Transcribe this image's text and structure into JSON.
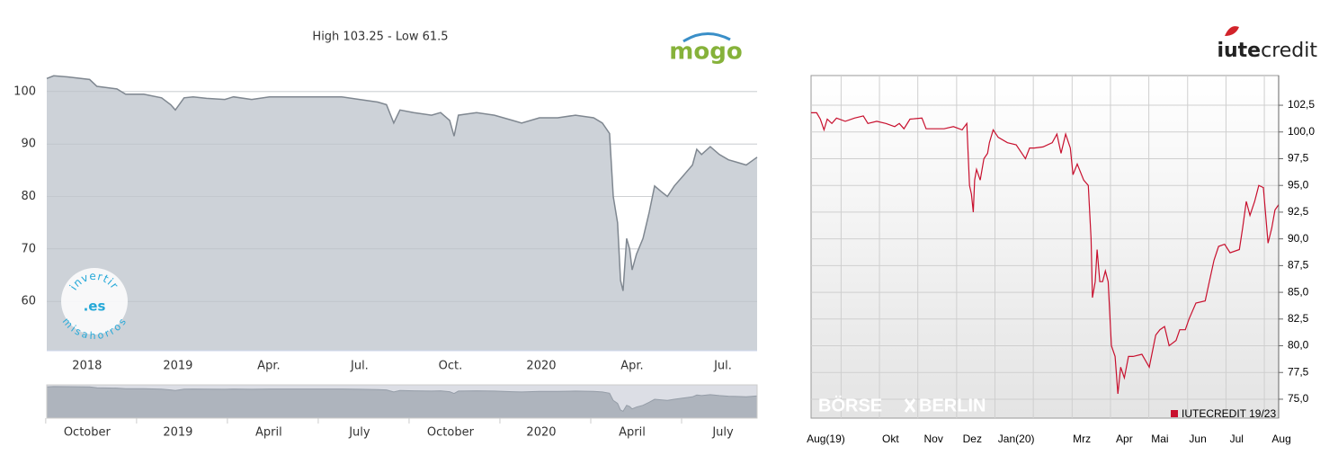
{
  "chart_data": [
    {
      "type": "area",
      "title": "High 103.25 - Low 61.5",
      "logo": "mogo",
      "watermark": [
        "invertir",
        ".es",
        "misahorros"
      ],
      "color": "#7f8790",
      "fill": "#cdd2d8",
      "grid": true,
      "xlim": [
        2018.639,
        2020.594
      ],
      "ylim": [
        50.6,
        105.8
      ],
      "yticks": [
        60,
        70,
        80,
        90,
        100
      ],
      "xticks": [
        {
          "value": 2018.75,
          "label": "2018"
        },
        {
          "value": 2019.0,
          "label": "2019"
        },
        {
          "value": 2019.25,
          "label": "Apr."
        },
        {
          "value": 2019.5,
          "label": "Jul."
        },
        {
          "value": 2019.75,
          "label": "Oct."
        },
        {
          "value": 2020.0,
          "label": "2020"
        },
        {
          "value": 2020.25,
          "label": "Apr."
        },
        {
          "value": 2020.5,
          "label": "Jul."
        }
      ],
      "navigator_xticks": [
        {
          "value": 2018.75,
          "label": "October"
        },
        {
          "value": 2019.0,
          "label": "2019"
        },
        {
          "value": 2019.25,
          "label": "April"
        },
        {
          "value": 2019.5,
          "label": "July"
        },
        {
          "value": 2019.75,
          "label": "October"
        },
        {
          "value": 2020.0,
          "label": "2020"
        },
        {
          "value": 2020.25,
          "label": "April"
        },
        {
          "value": 2020.5,
          "label": "July"
        }
      ],
      "x": [
        2018.639,
        2018.658,
        2018.696,
        2018.757,
        2018.777,
        2018.832,
        2018.856,
        2018.906,
        2018.955,
        2018.98,
        2018.993,
        2019.017,
        2019.042,
        2019.079,
        2019.129,
        2019.153,
        2019.203,
        2019.252,
        2019.302,
        2019.351,
        2019.401,
        2019.45,
        2019.5,
        2019.55,
        2019.574,
        2019.594,
        2019.611,
        2019.649,
        2019.698,
        2019.723,
        2019.748,
        2019.76,
        2019.772,
        2019.822,
        2019.871,
        2019.921,
        2019.946,
        2019.995,
        2020.045,
        2020.094,
        2020.144,
        2020.168,
        2020.188,
        2020.198,
        2020.21,
        2020.218,
        2020.225,
        2020.235,
        2020.243,
        2020.25,
        2020.262,
        2020.28,
        2020.297,
        2020.312,
        2020.329,
        2020.347,
        2020.366,
        2020.391,
        2020.416,
        2020.428,
        2020.441,
        2020.465,
        2020.49,
        2020.515,
        2020.54,
        2020.564,
        2020.584,
        2020.594
      ],
      "values": [
        102.5,
        103,
        102.8,
        102.3,
        101,
        100.5,
        99.5,
        99.5,
        98.8,
        97.5,
        96.5,
        98.8,
        99,
        98.7,
        98.5,
        99,
        98.5,
        99,
        99,
        99,
        99,
        99,
        98.5,
        98,
        97.5,
        94,
        96.5,
        96,
        95.5,
        96,
        94.5,
        91.5,
        95.5,
        96,
        95.5,
        94.5,
        94,
        95,
        95,
        95.5,
        95,
        94,
        92,
        80,
        75,
        64,
        62,
        72,
        70,
        66,
        69,
        72,
        77,
        82,
        81,
        80,
        82,
        84,
        86,
        89,
        88,
        89.5,
        88,
        87,
        86.5,
        86,
        87,
        87.5
      ]
    },
    {
      "type": "line",
      "logo": [
        "iute",
        "credit"
      ],
      "watermark": [
        "BÖRSE",
        "BERLIN"
      ],
      "grid": true,
      "xlim": [
        2019.602,
        2020.614
      ],
      "ylim": [
        73.23,
        105.28
      ],
      "yticks": [
        {
          "value": 75,
          "label": "75,0"
        },
        {
          "value": 77.5,
          "label": "77,5"
        },
        {
          "value": 80,
          "label": "80,0"
        },
        {
          "value": 82.5,
          "label": "82,5"
        },
        {
          "value": 85,
          "label": "85,0"
        },
        {
          "value": 87.5,
          "label": "87,5"
        },
        {
          "value": 90,
          "label": "90,0"
        },
        {
          "value": 92.5,
          "label": "92,5"
        },
        {
          "value": 95,
          "label": "95,0"
        },
        {
          "value": 97.5,
          "label": "97,5"
        },
        {
          "value": 100,
          "label": "100,0"
        },
        {
          "value": 102.5,
          "label": "102,5"
        }
      ],
      "xticks": [
        {
          "value": 2019.634,
          "label": "Aug(19)"
        },
        {
          "value": 2019.774,
          "label": "Okt"
        },
        {
          "value": 2019.867,
          "label": "Nov"
        },
        {
          "value": 2019.951,
          "label": "Dez"
        },
        {
          "value": 2020.046,
          "label": "Jan(20)"
        },
        {
          "value": 2020.188,
          "label": "Mrz"
        },
        {
          "value": 2020.28,
          "label": "Apr"
        },
        {
          "value": 2020.357,
          "label": "Mai"
        },
        {
          "value": 2020.439,
          "label": "Jun"
        },
        {
          "value": 2020.523,
          "label": "Jul"
        },
        {
          "value": 2020.62,
          "label": "Aug"
        }
      ],
      "xgrid": [
        2019.667,
        2019.75,
        2019.833,
        2019.917,
        2020.0,
        2020.083,
        2020.167,
        2020.25,
        2020.333,
        2020.417,
        2020.5,
        2020.583
      ],
      "x": [
        2019.602,
        2019.614,
        2019.622,
        2019.63,
        2019.637,
        2019.647,
        2019.657,
        2019.676,
        2019.696,
        2019.715,
        2019.725,
        2019.744,
        2019.764,
        2019.783,
        2019.793,
        2019.803,
        2019.816,
        2019.842,
        2019.851,
        2019.871,
        2019.89,
        2019.91,
        2019.929,
        2019.939,
        2019.945,
        2019.949,
        2019.953,
        2019.956,
        2019.96,
        2019.968,
        2019.976,
        2019.984,
        2019.988,
        2019.996,
        2020.007,
        2020.027,
        2020.046,
        2020.066,
        2020.075,
        2020.085,
        2020.104,
        2020.124,
        2020.134,
        2020.143,
        2020.153,
        2020.163,
        2020.169,
        2020.178,
        2020.192,
        2020.202,
        2020.208,
        2020.211,
        2020.217,
        2020.221,
        2020.227,
        2020.233,
        2020.239,
        2020.245,
        2020.252,
        2020.26,
        2020.266,
        2020.272,
        2020.28,
        2020.289,
        2020.299,
        2020.318,
        2020.334,
        2020.348,
        2020.357,
        2020.367,
        2020.377,
        2020.392,
        2020.4,
        2020.412,
        2020.42,
        2020.435,
        2020.455,
        2020.464,
        2020.474,
        2020.484,
        2020.497,
        2020.509,
        2020.529,
        2020.536,
        2020.544,
        2020.552,
        2020.562,
        2020.571,
        2020.581,
        2020.591,
        2020.599,
        2020.606,
        2020.614
      ],
      "series": [
        {
          "name": "IUTECREDIT 19/23",
          "color": "#c8102e",
          "values": [
            101.8,
            101.8,
            101.2,
            100.2,
            101.2,
            100.8,
            101.3,
            101,
            101.3,
            101.5,
            100.8,
            101,
            100.8,
            100.5,
            100.8,
            100.3,
            101.2,
            101.3,
            100.3,
            100.3,
            100.3,
            100.5,
            100.2,
            100.8,
            95,
            94.2,
            92.5,
            95.5,
            96.5,
            95.5,
            97.5,
            98,
            99,
            100.2,
            99.5,
            99,
            98.8,
            97.5,
            98.5,
            98.5,
            98.6,
            99,
            99.8,
            98,
            99.8,
            98.5,
            96,
            97,
            95.5,
            95,
            90,
            84.5,
            86,
            89,
            86,
            86,
            87,
            86,
            80,
            79,
            75.5,
            78,
            77,
            79,
            79,
            79.2,
            78,
            81,
            81.5,
            81.8,
            80,
            80.5,
            81.5,
            81.5,
            82.5,
            84,
            84.2,
            86,
            88,
            89.3,
            89.5,
            88.7,
            89,
            91,
            93.5,
            92.2,
            93.5,
            95,
            94.8,
            89.6,
            91,
            92.7,
            93.2
          ]
        }
      ]
    }
  ]
}
